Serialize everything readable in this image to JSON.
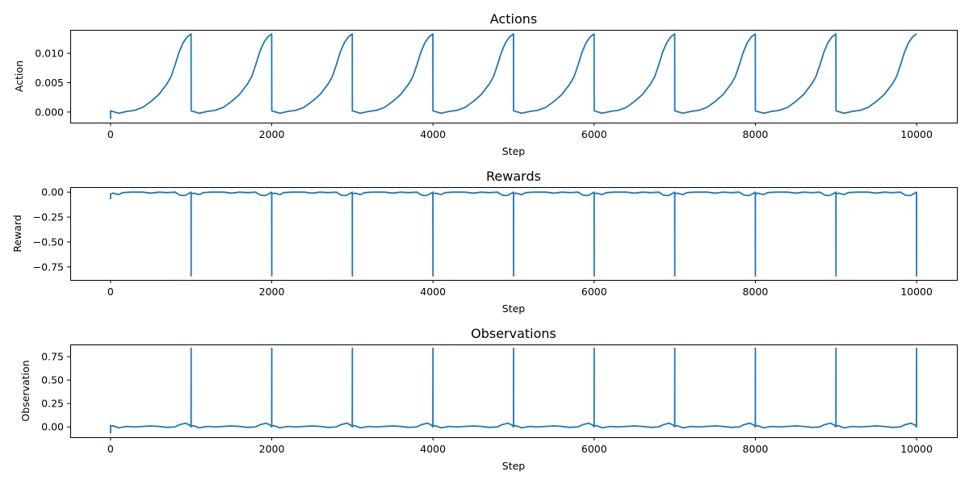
{
  "chart_data": [
    {
      "type": "line",
      "title": "Actions",
      "xlabel": "Step",
      "ylabel": "Action",
      "xlim": [
        -500,
        10500
      ],
      "ylim": [
        -0.0018,
        0.014
      ],
      "xticks": [
        0,
        2000,
        4000,
        6000,
        8000,
        10000
      ],
      "xtick_labels": [
        "0",
        "2000",
        "4000",
        "6000",
        "8000",
        "10000"
      ],
      "yticks": [
        0.0,
        0.005,
        0.01
      ],
      "ytick_labels": [
        "0.000",
        "0.005",
        "0.010"
      ],
      "grid": false,
      "series": [
        {
          "color": "#1f77b4",
          "pattern": "sawtooth",
          "period": 1000,
          "points": [
            [
              0,
              -0.0012
            ],
            [
              0,
              0.0002
            ],
            [
              50,
              0.0
            ],
            [
              100,
              -0.0002
            ],
            [
              200,
              0.0001
            ],
            [
              300,
              0.0003
            ],
            [
              400,
              0.0008
            ],
            [
              500,
              0.0018
            ],
            [
              600,
              0.003
            ],
            [
              700,
              0.0048
            ],
            [
              750,
              0.006
            ],
            [
              800,
              0.008
            ],
            [
              850,
              0.0102
            ],
            [
              900,
              0.0118
            ],
            [
              950,
              0.0128
            ],
            [
              999,
              0.0133
            ]
          ]
        }
      ]
    },
    {
      "type": "line",
      "title": "Rewards",
      "xlabel": "Step",
      "ylabel": "Reward",
      "xlim": [
        -500,
        10500
      ],
      "ylim": [
        -0.88,
        0.05
      ],
      "xticks": [
        0,
        2000,
        4000,
        6000,
        8000,
        10000
      ],
      "xtick_labels": [
        "0",
        "2000",
        "4000",
        "6000",
        "8000",
        "10000"
      ],
      "yticks": [
        0.0,
        -0.25,
        -0.5,
        -0.75
      ],
      "ytick_labels": [
        "0.00",
        "−0.25",
        "−0.50",
        "−0.75"
      ],
      "grid": false,
      "series": [
        {
          "color": "#1f77b4",
          "pattern": "periodic-spikes",
          "period": 1000,
          "points": [
            [
              0,
              -0.07
            ],
            [
              0,
              -0.02
            ],
            [
              30,
              -0.01
            ],
            [
              100,
              -0.025
            ],
            [
              150,
              -0.005
            ],
            [
              250,
              0.0
            ],
            [
              400,
              0.0
            ],
            [
              500,
              -0.01
            ],
            [
              600,
              0.0
            ],
            [
              700,
              -0.005
            ],
            [
              800,
              0.0
            ],
            [
              860,
              -0.03
            ],
            [
              920,
              -0.035
            ],
            [
              980,
              -0.01
            ],
            [
              999,
              0.0
            ],
            [
              1000,
              -0.84
            ]
          ]
        }
      ]
    },
    {
      "type": "line",
      "title": "Observations",
      "xlabel": "Step",
      "ylabel": "Observation",
      "xlim": [
        -500,
        10500
      ],
      "ylim": [
        -0.11,
        0.88
      ],
      "xticks": [
        0,
        2000,
        4000,
        6000,
        8000,
        10000
      ],
      "xtick_labels": [
        "0",
        "2000",
        "4000",
        "6000",
        "8000",
        "10000"
      ],
      "yticks": [
        0.0,
        0.25,
        0.5,
        0.75
      ],
      "ytick_labels": [
        "0.00",
        "0.25",
        "0.50",
        "0.75"
      ],
      "grid": false,
      "series": [
        {
          "color": "#1f77b4",
          "pattern": "periodic-spikes",
          "period": 1000,
          "points": [
            [
              0,
              -0.07
            ],
            [
              0,
              0.015
            ],
            [
              40,
              0.01
            ],
            [
              100,
              -0.01
            ],
            [
              200,
              0.005
            ],
            [
              300,
              0.0
            ],
            [
              400,
              0.005
            ],
            [
              500,
              0.01
            ],
            [
              600,
              0.005
            ],
            [
              700,
              -0.005
            ],
            [
              800,
              0.0
            ],
            [
              860,
              0.025
            ],
            [
              930,
              0.04
            ],
            [
              980,
              0.02
            ],
            [
              999,
              0.0
            ],
            [
              1000,
              0.84
            ]
          ]
        }
      ]
    }
  ]
}
